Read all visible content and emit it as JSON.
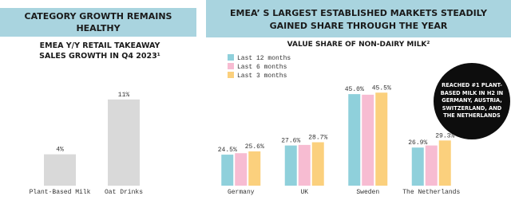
{
  "chart_data": [
    {
      "type": "bar",
      "title": "CATEGORY GROWTH REMAINS HEALTHY",
      "subtitle": "EMEA Y/Y RETAIL TAKEAWAY SALES GROWTH IN Q4 2023¹",
      "categories": [
        "Plant-Based Milk",
        "Oat Drinks"
      ],
      "values": [
        4,
        11
      ],
      "value_labels": [
        "4%",
        "11%"
      ],
      "color": "#d9d9d9",
      "ylim": [
        0,
        12
      ]
    },
    {
      "type": "bar",
      "title": "EMEA’ S LARGEST ESTABLISHED MARKETS STEADILY GAINED SHARE THROUGH THE YEAR",
      "subtitle": "VALUE SHARE OF NON-DAIRY MILK²",
      "categories": [
        "Germany",
        "UK",
        "Sweden",
        "The Netherlands"
      ],
      "series": [
        {
          "name": "Last 12 months",
          "color": "#8fd0db",
          "values": [
            24.5,
            27.6,
            45.0,
            26.9
          ],
          "value_labels": [
            "24.5%",
            "27.6%",
            "45.0%",
            "26.9%"
          ]
        },
        {
          "name": "Last 6 months",
          "color": "#f7bcd2",
          "values": [
            25.0,
            27.8,
            44.8,
            27.6
          ],
          "value_labels": [
            null,
            null,
            null,
            null
          ]
        },
        {
          "name": "Last 3 months",
          "color": "#fbd07d",
          "values": [
            25.6,
            28.7,
            45.5,
            29.3
          ],
          "value_labels": [
            "25.6%",
            "28.7%",
            "45.5%",
            "29.3%"
          ]
        }
      ],
      "ylim": [
        14,
        48
      ],
      "annotation": "REACHED #1 PLANT-BASED MILK IN H2 IN GERMANY, AUSTRIA, SWITZERLAND, AND THE NETHERLANDS"
    }
  ]
}
